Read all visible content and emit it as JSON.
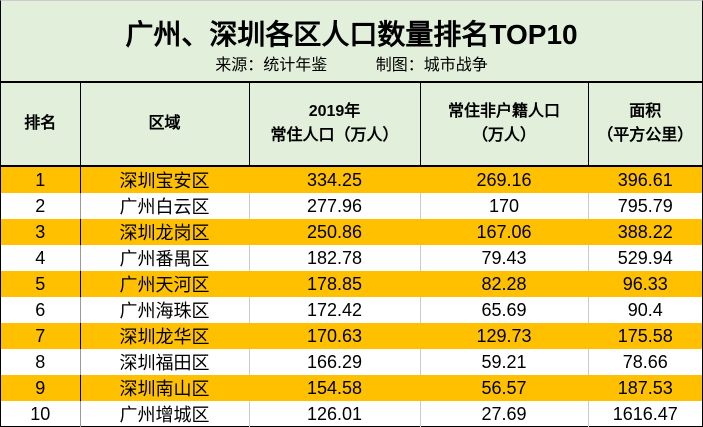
{
  "header": {
    "title": "广州、深圳各区人口数量排名TOP10",
    "source": "来源：统计年鉴",
    "maker": "制图：城市战争"
  },
  "columns": [
    {
      "line1": "排名",
      "line2": ""
    },
    {
      "line1": "区域",
      "line2": ""
    },
    {
      "line1": "2019年",
      "line2": "常住人口（万人）"
    },
    {
      "line1": "常住非户籍人口",
      "line2": "（万人）"
    },
    {
      "line1": "面积",
      "line2": "（平方公里）"
    }
  ],
  "rows": [
    [
      "1",
      "深圳宝安区",
      "334.25",
      "269.16",
      "396.61"
    ],
    [
      "2",
      "广州白云区",
      "277.96",
      "170",
      "795.79"
    ],
    [
      "3",
      "深圳龙岗区",
      "250.86",
      "167.06",
      "388.22"
    ],
    [
      "4",
      "广州番禺区",
      "182.78",
      "79.43",
      "529.94"
    ],
    [
      "5",
      "广州天河区",
      "178.85",
      "82.28",
      "96.33"
    ],
    [
      "6",
      "广州海珠区",
      "172.42",
      "65.69",
      "90.4"
    ],
    [
      "7",
      "深圳龙华区",
      "170.63",
      "129.73",
      "175.58"
    ],
    [
      "8",
      "深圳福田区",
      "166.29",
      "59.21",
      "78.66"
    ],
    [
      "9",
      "深圳南山区",
      "154.58",
      "56.57",
      "187.53"
    ],
    [
      "10",
      "广州增城区",
      "126.01",
      "27.69",
      "1616.47"
    ]
  ],
  "colors": {
    "highlight": "#ffc000",
    "header_bg": "#e2efda"
  }
}
